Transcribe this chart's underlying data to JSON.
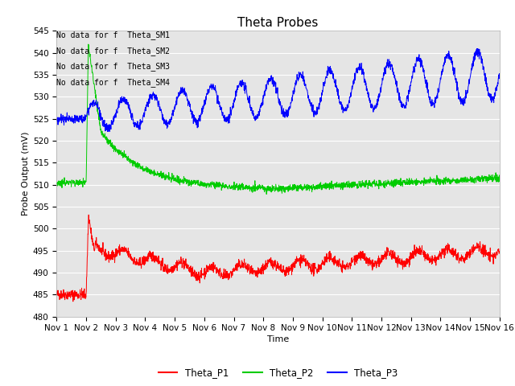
{
  "title": "Theta Probes",
  "xlabel": "Time",
  "ylabel": "Probe Output (mV)",
  "ylim": [
    480,
    545
  ],
  "xlim_days": [
    0,
    15
  ],
  "xtick_labels": [
    "Nov 1",
    "Nov 2",
    "Nov 3",
    "Nov 4",
    "Nov 5",
    "Nov 6",
    "Nov 7",
    "Nov 8",
    "Nov 9",
    "Nov 10",
    "Nov 11",
    "Nov 12",
    "Nov 13",
    "Nov 14",
    "Nov 15",
    "Nov 16"
  ],
  "ytick_values": [
    480,
    485,
    490,
    495,
    500,
    505,
    510,
    515,
    520,
    525,
    530,
    535,
    540,
    545
  ],
  "colors": {
    "P1": "#ff0000",
    "P2": "#00cc00",
    "P3": "#0000ff"
  },
  "annotations": [
    "No data for f  Theta_SM1",
    "No data for f  Theta_SM2",
    "No data for f  Theta_SM3",
    "No data for f  Theta_SM4"
  ],
  "background_color": "#e5e5e5",
  "grid_color": "#ffffff",
  "title_fontsize": 11,
  "axis_fontsize": 8,
  "tick_fontsize": 7.5,
  "annotation_fontsize": 7
}
